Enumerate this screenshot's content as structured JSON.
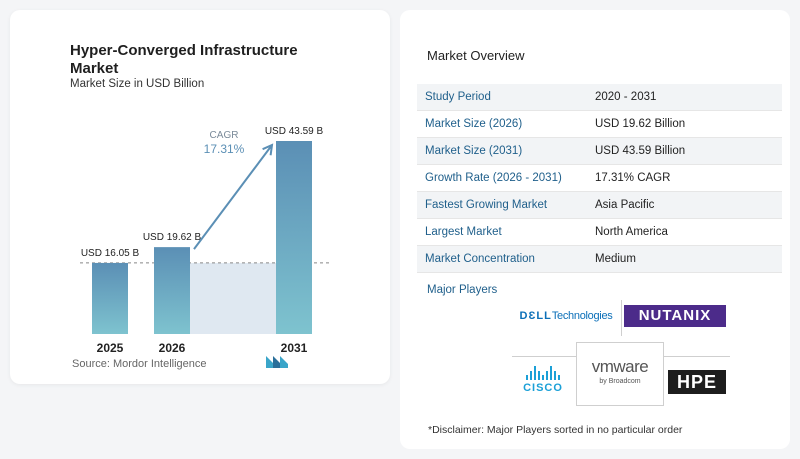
{
  "chart_data": {
    "type": "bar",
    "title": "Hyper-Converged Infrastructure Market",
    "subtitle": "Market Size in USD Billion",
    "categories": [
      "2025",
      "2026",
      "2031"
    ],
    "values": [
      16.05,
      19.62,
      43.59
    ],
    "value_labels": [
      "USD 16.05 B",
      "USD 19.62 B",
      "USD 43.59 B"
    ],
    "ylim": [
      0,
      43.59
    ],
    "cagr_label": "CAGR",
    "cagr_value": "17.31%",
    "colors": {
      "bar_top": "#5b8fb5",
      "bar_bottom": "#7ec3cf",
      "cagr": "#5b8fb5",
      "shade": "#dfe8f1"
    }
  },
  "source": "Source:  Mordor Intelligence",
  "overview": {
    "title": "Market Overview",
    "rows": [
      {
        "label": "Study Period",
        "value": "2020 - 2031"
      },
      {
        "label": "Market Size (2026)",
        "value": "USD 19.62 Billion"
      },
      {
        "label": "Market Size (2031)",
        "value": "USD 43.59 Billion"
      },
      {
        "label": "Growth Rate (2026 - 2031)",
        "value": "17.31% CAGR"
      },
      {
        "label": "Fastest Growing Market",
        "value": "Asia Pacific"
      },
      {
        "label": "Largest Market",
        "value": "North America"
      },
      {
        "label": "Market Concentration",
        "value": "Medium"
      }
    ]
  },
  "players": {
    "title": "Major Players",
    "dell_a": "D",
    "dell_b": "LL",
    "dell_c": "Technologies",
    "nutanix": "NUTANIX",
    "cisco": "CISCO",
    "vmware": "vmware",
    "vmware_sub": "by Broadcom",
    "hpe": "HPE"
  },
  "disclaimer": "*Disclaimer: Major Players sorted in no particular order"
}
